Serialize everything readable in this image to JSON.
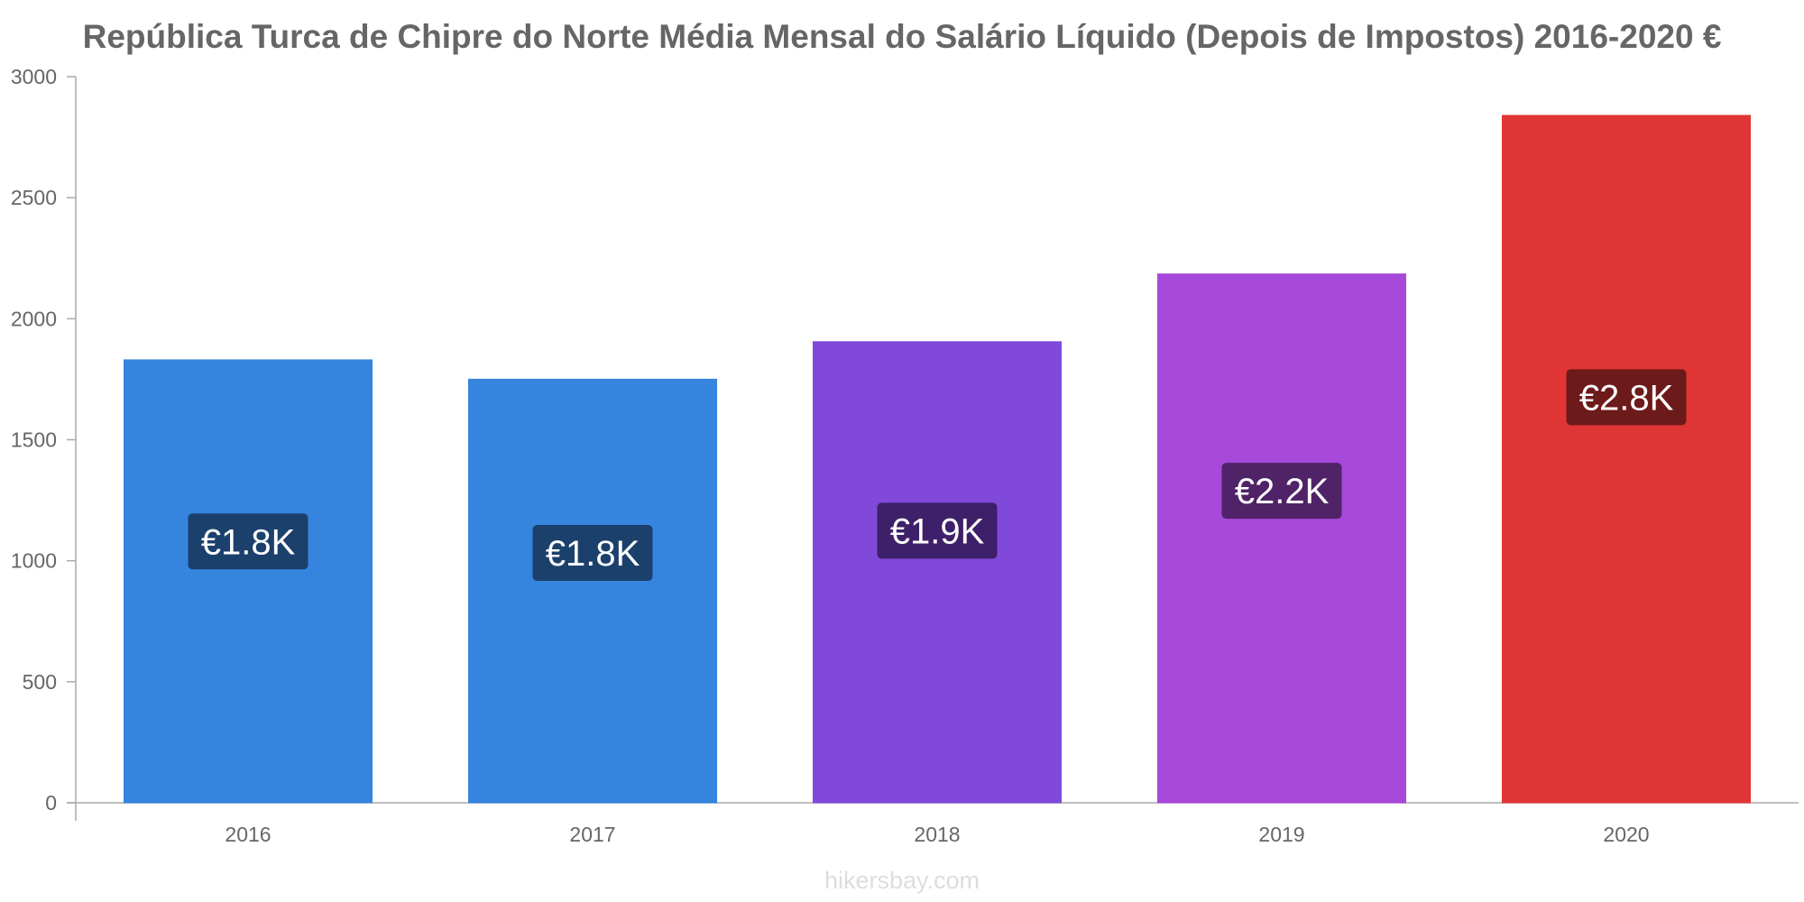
{
  "chart_data": {
    "type": "bar",
    "title": "República Turca de Chipre do Norte Média Mensal do Salário Líquido (Depois de Impostos) 2016-2020 €",
    "xlabel": "",
    "ylabel": "",
    "categories": [
      "2016",
      "2017",
      "2018",
      "2019",
      "2020"
    ],
    "values": [
      1830,
      1750,
      1905,
      2185,
      2840
    ],
    "data_labels": [
      "€1.8K",
      "€1.8K",
      "€1.9K",
      "€2.2K",
      "€2.8K"
    ],
    "ylim": [
      0,
      3000
    ],
    "yticks": [
      0,
      500,
      1000,
      1500,
      2000,
      2500,
      3000
    ],
    "bar_colors": [
      "#3584de",
      "#3584de",
      "#8149d9",
      "#a648d9",
      "#e03535"
    ],
    "label_box_colors": [
      "#1c406c",
      "#1c406c",
      "#3d2069",
      "#502268",
      "#6d1a1a"
    ],
    "grid": false,
    "legend": "none"
  },
  "watermark": "hikersbay.com"
}
